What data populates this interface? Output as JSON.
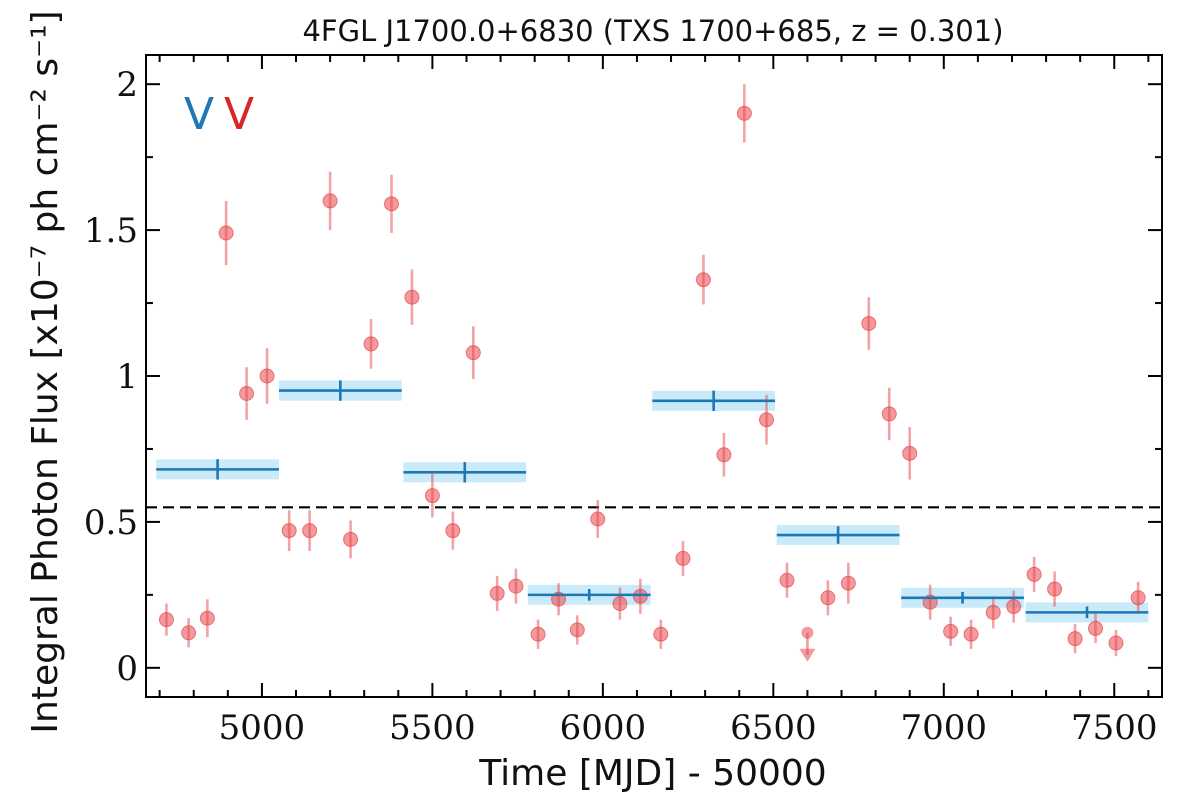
{
  "chart_data": {
    "type": "scatter",
    "title": "4FGL J1700.0+6830 (TXS 1700+685, z = 0.301)",
    "xlabel": "Time [MJD] - 50000",
    "ylabel": "Integral Photon Flux [x10⁻⁷ ph cm⁻² s⁻¹]",
    "xlim": [
      4660,
      7640
    ],
    "ylim": [
      -0.1,
      2.1
    ],
    "x_ticks": [
      5000,
      5500,
      6000,
      6500,
      7000,
      7500
    ],
    "x_tick_labels": [
      "5000",
      "5500",
      "6000",
      "6500",
      "7000",
      "7500"
    ],
    "y_ticks": [
      0,
      0.5,
      1,
      1.5,
      2
    ],
    "y_tick_labels": [
      "0",
      "0.5",
      "1",
      "1.5",
      "2"
    ],
    "reference_line": {
      "y": 0.55,
      "style": "dashed",
      "color": "#000000"
    },
    "legend": {
      "placement": "top-left",
      "items": [
        {
          "label": "V",
          "color": "#1f77b4"
        },
        {
          "label": "V",
          "color": "#d62728"
        }
      ]
    },
    "series": [
      {
        "kind": "points",
        "color": "#e8474c",
        "x": [
          4720,
          4785,
          4840,
          4895,
          4955,
          5015,
          5080,
          5140,
          5200,
          5260,
          5320,
          5380,
          5440,
          5500,
          5560,
          5620,
          5690,
          5745,
          5810,
          5870,
          5925,
          5985,
          6050,
          6110,
          6170,
          6235,
          6295,
          6355,
          6415,
          6480,
          6540,
          6660,
          6720,
          6780,
          6840,
          6900,
          6960,
          7020,
          7080,
          7145,
          7205,
          7265,
          7325,
          7385,
          7445,
          7505,
          7570
        ],
        "y": [
          0.165,
          0.12,
          0.17,
          1.49,
          0.94,
          1.0,
          0.47,
          0.47,
          1.6,
          0.44,
          1.11,
          1.59,
          1.27,
          0.59,
          0.47,
          1.08,
          0.255,
          0.28,
          0.115,
          0.235,
          0.13,
          0.51,
          0.22,
          0.245,
          0.115,
          0.375,
          1.33,
          0.73,
          1.9,
          0.85,
          0.3,
          0.24,
          0.29,
          1.18,
          0.87,
          0.735,
          0.225,
          0.125,
          0.115,
          0.19,
          0.21,
          0.32,
          0.27,
          0.1,
          0.135,
          0.085,
          0.24
        ],
        "yerr": [
          0.055,
          0.05,
          0.065,
          0.11,
          0.09,
          0.095,
          0.07,
          0.07,
          0.1,
          0.065,
          0.085,
          0.1,
          0.095,
          0.075,
          0.065,
          0.09,
          0.06,
          0.06,
          0.05,
          0.055,
          0.05,
          0.065,
          0.055,
          0.06,
          0.05,
          0.06,
          0.085,
          0.075,
          0.1,
          0.085,
          0.06,
          0.06,
          0.07,
          0.09,
          0.09,
          0.09,
          0.06,
          0.05,
          0.05,
          0.055,
          0.055,
          0.06,
          0.06,
          0.05,
          0.05,
          0.045,
          0.055
        ]
      },
      {
        "kind": "upper_limits",
        "color": "#e8474c",
        "x": [
          6600
        ],
        "y": [
          0.12
        ]
      },
      {
        "kind": "bins",
        "color": "#1f77b4",
        "band_color": "#c9eaf8",
        "x": [
          4870,
          5230,
          5595,
          5960,
          6325,
          6690,
          7055,
          7420
        ],
        "xerr": [
          180,
          180,
          180,
          180,
          180,
          180,
          180,
          180
        ],
        "y": [
          0.68,
          0.95,
          0.67,
          0.25,
          0.915,
          0.455,
          0.24,
          0.19
        ],
        "yerr": [
          0.035,
          0.035,
          0.035,
          0.02,
          0.035,
          0.03,
          0.02,
          0.02
        ]
      }
    ]
  }
}
